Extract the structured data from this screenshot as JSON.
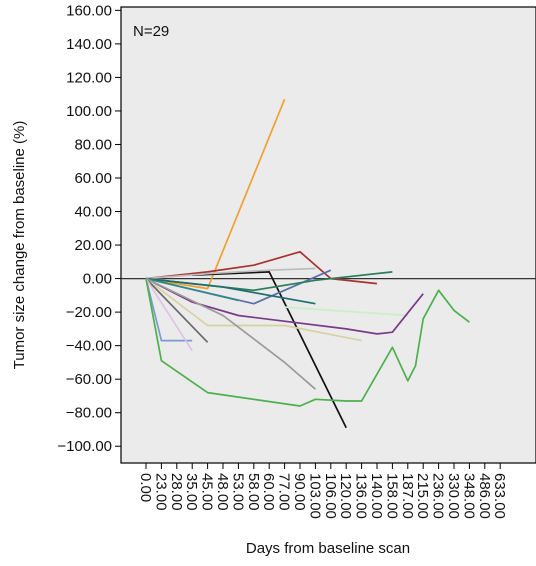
{
  "chart_data": {
    "type": "line",
    "title": "",
    "xlabel": "Days from baseline scan",
    "ylabel": "Tumor size change from baseline (%)",
    "annotation": "N=29",
    "ylim": [
      -110,
      162
    ],
    "y_ticks": [
      "160.00",
      "140.00",
      "120.00",
      "100.00",
      "80.00",
      "60.00",
      "40.00",
      "20.00",
      "0.00",
      "−20.00",
      "−40.00",
      "−60.00",
      "−80.00",
      "−100.00"
    ],
    "x_categories": [
      "0.00",
      "23.00",
      "28.00",
      "35.00",
      "45.00",
      "48.00",
      "53.00",
      "58.00",
      "60.00",
      "77.00",
      "90.00",
      "103.00",
      "106.00",
      "120.00",
      "136.00",
      "140.00",
      "158.00",
      "187.00",
      "215.00",
      "236.00",
      "330.00",
      "348.00",
      "486.00",
      "633.00"
    ],
    "reference_line": 0,
    "grid": false,
    "background": "#ebebeb",
    "series": [
      {
        "color": "#f0a030",
        "points": [
          [
            0,
            0
          ],
          [
            4,
            -6
          ],
          [
            9,
            107
          ]
        ]
      },
      {
        "color": "#a83232",
        "points": [
          [
            0,
            0
          ],
          [
            4,
            4
          ],
          [
            7,
            8
          ],
          [
            10,
            16
          ],
          [
            12,
            0
          ],
          [
            15,
            -3
          ]
        ]
      },
      {
        "color": "#111111",
        "points": [
          [
            3,
            2
          ],
          [
            8,
            4
          ],
          [
            13,
            -89
          ]
        ]
      },
      {
        "color": "#bdbdbd",
        "points": [
          [
            0,
            0
          ],
          [
            4,
            3
          ],
          [
            8,
            5
          ],
          [
            11,
            6
          ]
        ]
      },
      {
        "color": "#5a70a8",
        "points": [
          [
            0,
            0
          ],
          [
            7,
            -15
          ],
          [
            12,
            5
          ]
        ]
      },
      {
        "color": "#2e7d5a",
        "points": [
          [
            0,
            0
          ],
          [
            7,
            -7
          ],
          [
            11,
            -1
          ],
          [
            16,
            4
          ]
        ]
      },
      {
        "color": "#1f6e6e",
        "points": [
          [
            0,
            0
          ],
          [
            5,
            -5
          ],
          [
            11,
            -15
          ]
        ]
      },
      {
        "color": "#2d8a8a",
        "points": [
          [
            0,
            0
          ],
          [
            6,
            -13
          ]
        ]
      },
      {
        "color": "#c8f0c8",
        "points": [
          [
            9,
            -17
          ],
          [
            17,
            -22
          ]
        ]
      },
      {
        "color": "#7a3a8a",
        "points": [
          [
            0,
            0
          ],
          [
            3,
            -14
          ],
          [
            6,
            -22
          ],
          [
            13,
            -30
          ],
          [
            15,
            -33
          ],
          [
            16,
            -32
          ],
          [
            18,
            -9
          ]
        ]
      },
      {
        "color": "#d6d2a0",
        "points": [
          [
            0,
            0
          ],
          [
            4,
            -28
          ],
          [
            9,
            -28
          ],
          [
            14,
            -37
          ]
        ]
      },
      {
        "color": "#9a9a9a",
        "points": [
          [
            0,
            0
          ],
          [
            5,
            -22
          ],
          [
            9,
            -50
          ],
          [
            11,
            -66
          ]
        ]
      },
      {
        "color": "#7a9ad0",
        "points": [
          [
            0,
            0
          ],
          [
            1,
            -37
          ],
          [
            3,
            -37
          ]
        ]
      },
      {
        "color": "#6a6a6a",
        "points": [
          [
            0,
            0
          ],
          [
            4,
            -38
          ]
        ]
      },
      {
        "color": "#e0c0e8",
        "points": [
          [
            0,
            0
          ],
          [
            3,
            -43
          ]
        ]
      },
      {
        "color": "#4cb04c",
        "points": [
          [
            0,
            0
          ],
          [
            1,
            -49
          ],
          [
            4,
            -68
          ],
          [
            10,
            -76
          ],
          [
            11,
            -72
          ],
          [
            13,
            -73
          ],
          [
            14,
            -73
          ],
          [
            16,
            -41
          ],
          [
            17,
            -61
          ],
          [
            17.5,
            -52
          ],
          [
            18,
            -24
          ],
          [
            19,
            -7
          ],
          [
            20,
            -19
          ],
          [
            21,
            -26
          ]
        ]
      }
    ]
  }
}
